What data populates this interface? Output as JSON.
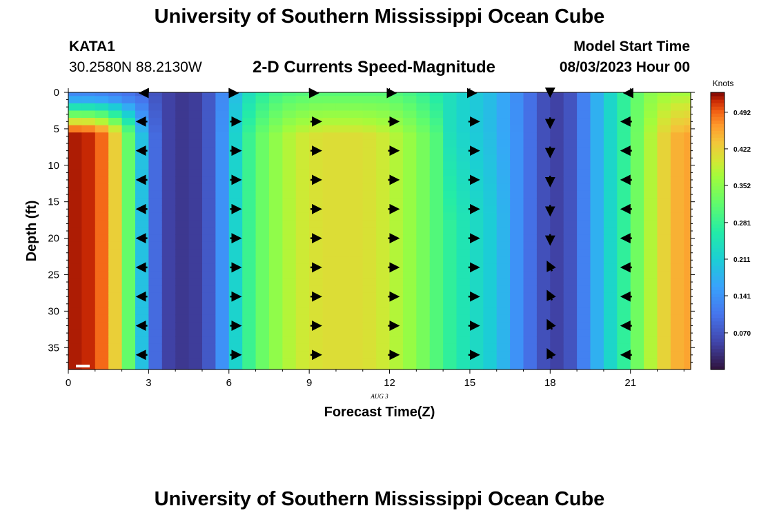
{
  "header": {
    "title": "University of Southern Mississippi Ocean Cube",
    "station": "KATA1",
    "coords": "30.2580N  88.2130W",
    "subtitle": "2-D Currents Speed-Magnitude",
    "model_start_label": "Model Start Time",
    "model_start_value": "08/03/2023 Hour 00"
  },
  "footer": {
    "title": "University of Southern Mississippi Ocean Cube"
  },
  "chart_data": {
    "type": "heatmap",
    "title": "2-D Currents Speed-Magnitude",
    "xlabel": "Forecast Time(Z)",
    "ylabel": "Depth (ft)",
    "date_label": "AUG 3",
    "colorbar_label": "Knots",
    "xlim": [
      0,
      23.25
    ],
    "ylim": [
      38,
      0
    ],
    "xticks": [
      0,
      3,
      6,
      9,
      12,
      15,
      18,
      21
    ],
    "yticks": [
      0,
      5,
      10,
      15,
      20,
      25,
      30,
      35
    ],
    "colorbar": {
      "min": 0.0,
      "max": 0.53,
      "ticks": [
        "0.070",
        "0.141",
        "0.211",
        "0.281",
        "0.352",
        "0.422",
        "0.492"
      ]
    },
    "hours": [
      0.25,
      0.75,
      1.25,
      1.75,
      2.25,
      2.75,
      3.25,
      3.75,
      4.25,
      4.75,
      5.25,
      5.75,
      6.25,
      6.75,
      7.25,
      7.75,
      8.25,
      8.75,
      9.25,
      9.75,
      10.25,
      10.75,
      11.25,
      11.75,
      12.25,
      12.75,
      13.25,
      13.75,
      14.25,
      14.75,
      15.25,
      15.75,
      16.25,
      16.75,
      17.25,
      17.75,
      18.25,
      18.75,
      19.25,
      19.75,
      20.25,
      20.75,
      21.25,
      21.75,
      22.25,
      22.75,
      23.25
    ],
    "depths": [
      0,
      1,
      2,
      3,
      4,
      5,
      6,
      7,
      8,
      9,
      10,
      11,
      12,
      13,
      14,
      15,
      16,
      17,
      18,
      19,
      20,
      21,
      22,
      23,
      24,
      25,
      26,
      27,
      28,
      29,
      30,
      31,
      32,
      33,
      34,
      35,
      36,
      37
    ],
    "speed_profile": {
      "hours": [
        0,
        0.5,
        1,
        1.5,
        2,
        2.5,
        3,
        3.5,
        4,
        4.5,
        5,
        5.5,
        6,
        6.5,
        7,
        7.5,
        8,
        8.5,
        9,
        9.5,
        10,
        10.5,
        11,
        11.5,
        12,
        12.5,
        13,
        13.5,
        14,
        14.5,
        15,
        15.5,
        16,
        16.5,
        17,
        17.5,
        18,
        18.5,
        19,
        19.5,
        20,
        20.5,
        21,
        21.5,
        22,
        22.5,
        23
      ],
      "deep_knots": [
        0.52,
        0.52,
        0.51,
        0.47,
        0.38,
        0.26,
        0.13,
        0.06,
        0.04,
        0.04,
        0.05,
        0.1,
        0.18,
        0.26,
        0.31,
        0.34,
        0.37,
        0.39,
        0.4,
        0.41,
        0.41,
        0.41,
        0.41,
        0.4,
        0.39,
        0.37,
        0.35,
        0.32,
        0.29,
        0.26,
        0.24,
        0.22,
        0.2,
        0.16,
        0.12,
        0.08,
        0.05,
        0.05,
        0.09,
        0.15,
        0.2,
        0.25,
        0.3,
        0.36,
        0.4,
        0.44,
        0.46
      ],
      "surface_knots": [
        0.13,
        0.13,
        0.13,
        0.12,
        0.11,
        0.1,
        0.08,
        0.06,
        0.04,
        0.04,
        0.05,
        0.1,
        0.16,
        0.22,
        0.26,
        0.28,
        0.3,
        0.3,
        0.31,
        0.31,
        0.31,
        0.31,
        0.31,
        0.31,
        0.31,
        0.3,
        0.29,
        0.27,
        0.25,
        0.23,
        0.21,
        0.2,
        0.18,
        0.15,
        0.12,
        0.08,
        0.05,
        0.05,
        0.09,
        0.15,
        0.2,
        0.25,
        0.3,
        0.34,
        0.36,
        0.37,
        0.37
      ]
    },
    "vector_times": [
      2.8,
      6.2,
      9.2,
      12.1,
      15.1,
      18.0,
      20.9
    ],
    "vector_depths": [
      0,
      4,
      8,
      12,
      16,
      20,
      24,
      28,
      32,
      36
    ],
    "vector_directions": [
      "west",
      "east",
      "east",
      "east",
      "east",
      "south",
      "west"
    ]
  }
}
